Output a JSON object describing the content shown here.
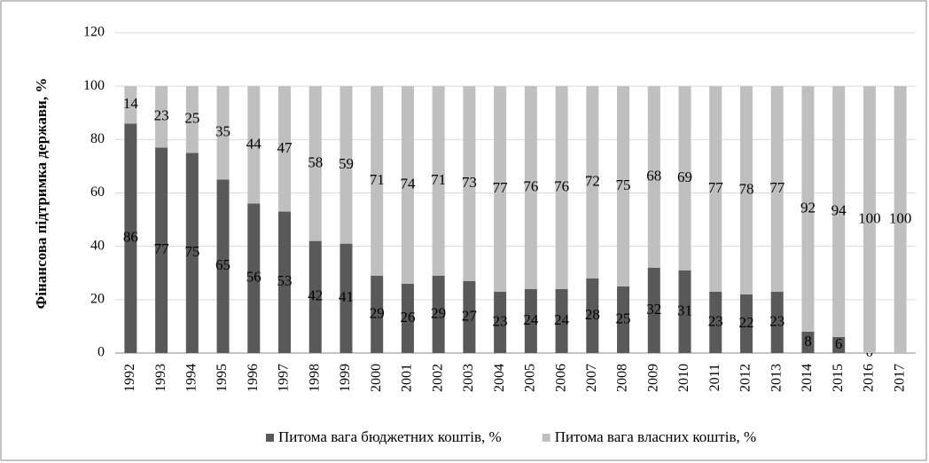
{
  "chart_data": {
    "type": "stacked_bar",
    "y_label": "Фінансова підтримка держави, %",
    "categories": [
      "1992",
      "1993",
      "1994",
      "1995",
      "1996",
      "1997",
      "1998",
      "1999",
      "2000",
      "2001",
      "2002",
      "2003",
      "2004",
      "2005",
      "2006",
      "2007",
      "2008",
      "2009",
      "2010",
      "2011",
      "2012",
      "2013",
      "2014",
      "2015",
      "2016",
      "2017"
    ],
    "series": [
      {
        "name": "Питома вага бюджетних коштів, %",
        "color": "#595959",
        "values": [
          86,
          77,
          75,
          65,
          56,
          53,
          42,
          41,
          29,
          26,
          29,
          27,
          23,
          24,
          24,
          28,
          25,
          32,
          31,
          23,
          22,
          23,
          8,
          6,
          0,
          null
        ]
      },
      {
        "name": "Питома вага власних коштів, %",
        "color": "#bfbfbf",
        "values": [
          14,
          23,
          25,
          35,
          44,
          47,
          58,
          59,
          71,
          74,
          71,
          73,
          77,
          76,
          76,
          72,
          75,
          68,
          69,
          77,
          78,
          77,
          92,
          94,
          100,
          100
        ]
      }
    ],
    "ylim": [
      0,
      120
    ],
    "yticks": [
      0,
      20,
      40,
      60,
      80,
      100,
      120
    ],
    "grid": true
  }
}
